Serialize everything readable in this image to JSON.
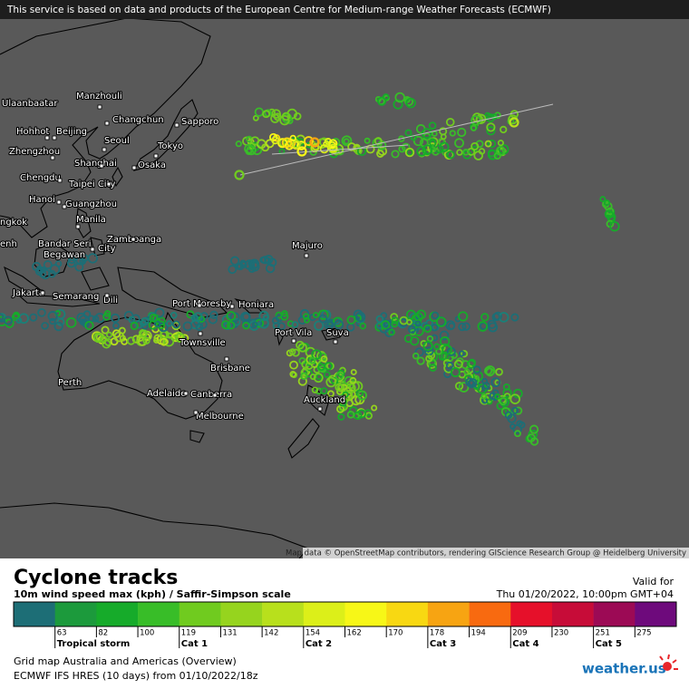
{
  "header": {
    "notice": "This service is based on data and products of the European Centre for Medium-range Weather Forecasts (ECMWF)"
  },
  "map": {
    "cities": [
      "Ulaanbaatar",
      "Manzhouli",
      "Changchun",
      "Sapporo",
      "Hohhot",
      "Beijing",
      "Seoul",
      "Tokyo",
      "Zhengzhou",
      "Osaka",
      "Shanghai",
      "Chengdu",
      "Taipei City",
      "Hanoi",
      "Guangzhou",
      "Manila",
      "ngkok",
      "Zamboanga",
      "City",
      "Bandar Seri",
      "Begawan",
      "enh",
      "Majuro",
      "Jakarta",
      "Semarang",
      "Dili",
      "Port Moresby",
      "Honiara",
      "Port Vila",
      "Suva",
      "Townsville",
      "Brisbane",
      "Perth",
      "Adelaide",
      "Canberra",
      "Auckland",
      "Melbourne"
    ],
    "attribution": "Map data © OpenStreetMap contributors, rendering GIScience Research Group @ Heidelberg University"
  },
  "legend": {
    "title": "Cyclone tracks",
    "subtitle": "10m wind speed max (kph) / Saffir-Simpson scale",
    "valid_label": "Valid for",
    "valid_time": "Thu 01/20/2022, 10:00pm GMT+04",
    "colors": [
      "#1d6e76",
      "#1c9a3c",
      "#16ab2a",
      "#38bd28",
      "#70cb1f",
      "#96d41e",
      "#b8e01c",
      "#dcef19",
      "#f7f717",
      "#f8d812",
      "#f7a412",
      "#f86a10",
      "#e6102a",
      "#c70c38",
      "#9c0a55",
      "#6e0a7c"
    ],
    "ticks": [
      63,
      82,
      100,
      119,
      131,
      142,
      154,
      162,
      170,
      178,
      194,
      209,
      230,
      251,
      275
    ],
    "categories": [
      "Tropical storm",
      null,
      null,
      "Cat 1",
      null,
      null,
      "Cat 2",
      null,
      null,
      "Cat 3",
      null,
      "Cat 4",
      null,
      "Cat 5",
      null
    ]
  },
  "footer": {
    "line1": "Grid map Australia and Americas (Overview)",
    "line2": "ECMWF IFS HRES (10 days) from 01/10/2022/18z",
    "logo": "weather.us"
  }
}
